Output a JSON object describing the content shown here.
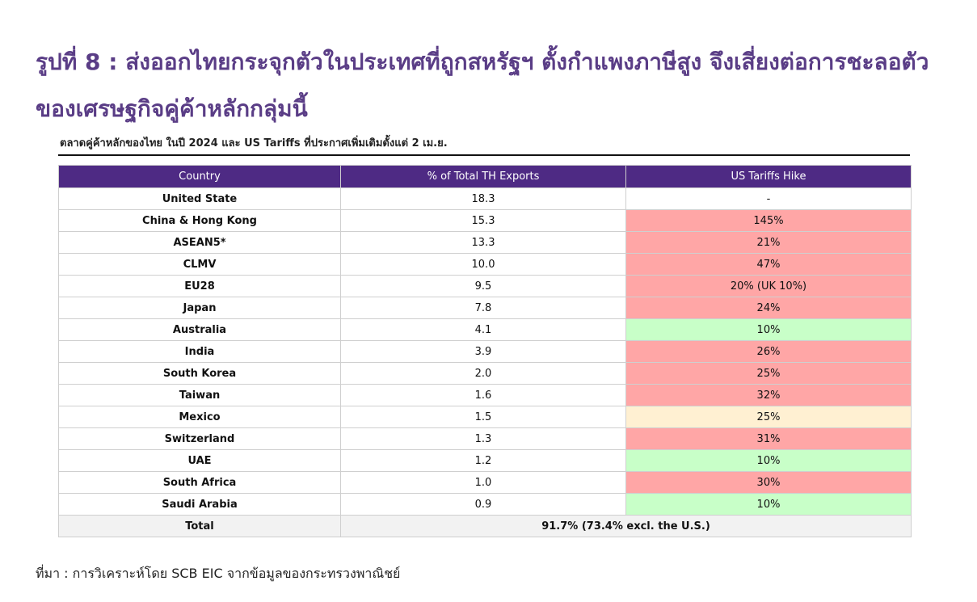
{
  "title": "รูปที่ 8 : ส่งออกไทยกระจุกตัวในประเทศที่ถูกสหรัฐฯ ตั้งกำแพงภาษีสูง จึงเสี่ยงต่อการชะลอตัวของเศรษฐกิจคู่ค้าหลักกลุ่มนี้",
  "subtitle": "ตลาดคู่ค้าหลักของไทย ในปี 2024 และ US Tariffs ที่ประกาศเพิ่มเติมตั้งแต่ 2 เม.ย.",
  "table": {
    "headers": [
      "Country",
      "% of Total TH Exports",
      "US Tariffs Hike"
    ],
    "rows": [
      {
        "country": "United State",
        "share": "18.3",
        "tariff": "-",
        "color": "#ffffff"
      },
      {
        "country": "China & Hong Kong",
        "share": "15.3",
        "tariff": "145%",
        "color": "#ffa6a6"
      },
      {
        "country": "ASEAN5*",
        "share": "13.3",
        "tariff": "21%",
        "color": "#ffa6a6"
      },
      {
        "country": "CLMV",
        "share": "10.0",
        "tariff": "47%",
        "color": "#ffa6a6"
      },
      {
        "country": "EU28",
        "share": "9.5",
        "tariff": "20% (UK 10%)",
        "color": "#ffa6a6"
      },
      {
        "country": "Japan",
        "share": "7.8",
        "tariff": "24%",
        "color": "#ffa6a6"
      },
      {
        "country": "Australia",
        "share": "4.1",
        "tariff": "10%",
        "color": "#c8ffc8"
      },
      {
        "country": "India",
        "share": "3.9",
        "tariff": "26%",
        "color": "#ffa6a6"
      },
      {
        "country": "South Korea",
        "share": "2.0",
        "tariff": "25%",
        "color": "#ffa6a6"
      },
      {
        "country": "Taiwan",
        "share": "1.6",
        "tariff": "32%",
        "color": "#ffa6a6"
      },
      {
        "country": "Mexico",
        "share": "1.5",
        "tariff": "25%",
        "color": "#fff0d2"
      },
      {
        "country": "Switzerland",
        "share": "1.3",
        "tariff": "31%",
        "color": "#ffa6a6"
      },
      {
        "country": "UAE",
        "share": "1.2",
        "tariff": "10%",
        "color": "#c8ffc8"
      },
      {
        "country": "South Africa",
        "share": "1.0",
        "tariff": "30%",
        "color": "#ffa6a6"
      },
      {
        "country": "Saudi Arabia",
        "share": "0.9",
        "tariff": "10%",
        "color": "#c8ffc8"
      }
    ],
    "total": {
      "label": "Total",
      "value": "91.7% (73.4% excl. the U.S.)"
    }
  },
  "source": "ที่มา : การวิเคราะห์โดย SCB EIC จากข้อมูลของกระทรวงพาณิชย์",
  "colors": {
    "header_bg": "#4e2a84",
    "title": "#5a3d86",
    "high_tariff": "#ffa6a6",
    "low_tariff": "#c8ffc8",
    "mid_tariff": "#fff0d2"
  }
}
